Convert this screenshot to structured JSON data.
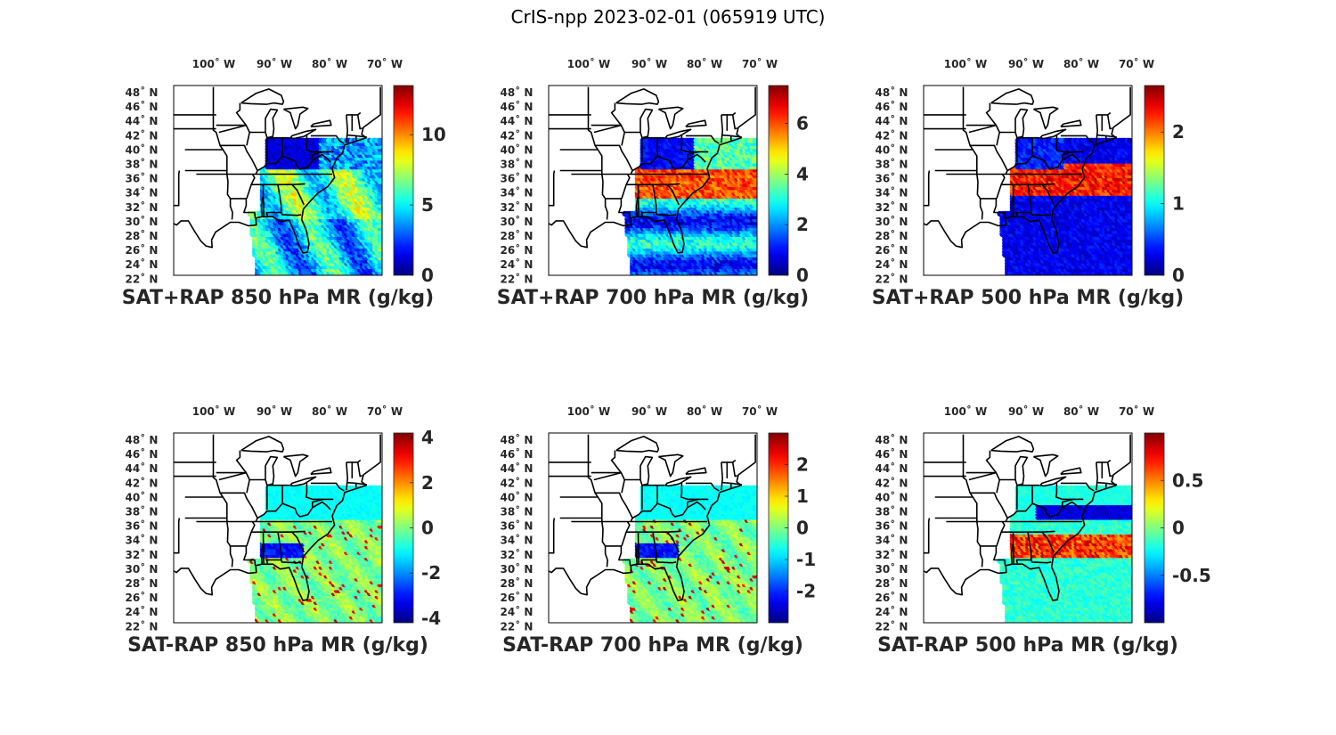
{
  "figure_title": "CrIS-npp 2023-02-01 (065919 UTC)",
  "lon_ticks": [
    "100˚ W",
    "90˚ W",
    "80˚ W",
    "70˚ W"
  ],
  "lat_ticks": [
    "48˚ N",
    "46˚ N",
    "44˚ N",
    "42˚ N",
    "40˚ N",
    "38˚ N",
    "36˚ N",
    "34˚ N",
    "32˚ N",
    "30˚ N",
    "28˚ N",
    "26˚ N",
    "24˚ N",
    "22˚ N"
  ],
  "colormap": "jet",
  "panels": [
    {
      "label": "SAT+RAP 850 hPa MR (g/kg)",
      "colorbar_ticks": [
        "10",
        "5",
        "0"
      ],
      "colorbar_values": [
        10,
        5,
        0
      ],
      "cmin": 0,
      "cmax": 13.5,
      "field": "mr850"
    },
    {
      "label": "SAT+RAP 700 hPa MR (g/kg)",
      "colorbar_ticks": [
        "6",
        "4",
        "2",
        "0"
      ],
      "colorbar_values": [
        6,
        4,
        2,
        0
      ],
      "cmin": 0,
      "cmax": 7.5,
      "field": "mr700"
    },
    {
      "label": "SAT+RAP 500 hPa MR (g/kg)",
      "colorbar_ticks": [
        "2",
        "1",
        "0"
      ],
      "colorbar_values": [
        2,
        1,
        0
      ],
      "cmin": 0,
      "cmax": 2.65,
      "field": "mr500"
    },
    {
      "label": "SAT-RAP 850 hPa MR (g/kg)",
      "colorbar_ticks": [
        "4",
        "2",
        "0",
        "-2",
        "-4"
      ],
      "colorbar_values": [
        4,
        2,
        0,
        -2,
        -4
      ],
      "cmin": -4.2,
      "cmax": 4.2,
      "field": "d850"
    },
    {
      "label": "SAT-RAP 700 hPa MR (g/kg)",
      "colorbar_ticks": [
        "2",
        "1",
        "0",
        "-1",
        "-2"
      ],
      "colorbar_values": [
        2,
        1,
        0,
        -1,
        -2
      ],
      "cmin": -3,
      "cmax": 3,
      "field": "d700"
    },
    {
      "label": "SAT-RAP 500 hPa MR (g/kg)",
      "colorbar_ticks": [
        "0.5",
        "0",
        "-0.5"
      ],
      "colorbar_values": [
        0.5,
        0,
        -0.5
      ],
      "cmin": -1,
      "cmax": 1,
      "field": "d500"
    }
  ]
}
